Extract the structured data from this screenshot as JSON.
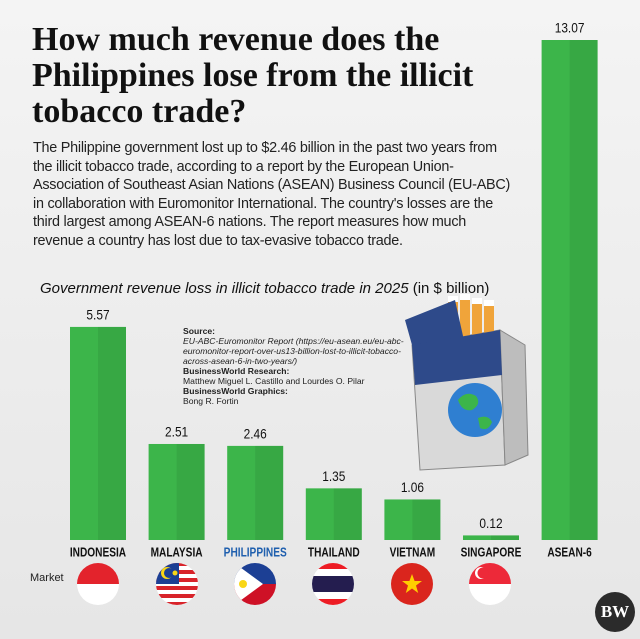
{
  "title": "How much revenue does the Philippines lose from the illicit tobacco trade?",
  "description": "The Philippine government lost up to $2.46 billion in the past two years from the illicit tobacco trade, according to a report by the European Union-Association of Southeast Asian Nations (ASEAN) Business Council (EU-ABC) in collaboration with Euromonitor International. The country's losses are the third largest among ASEAN-6 nations. The report measures how much revenue a country has lost due to tax-evasive tobacco trade.",
  "source": {
    "label": "Source:",
    "text": "EU-ABC-Euromonitor Report (https://eu-asean.eu/eu-abc-euromonitor-report-over-us13-billion-lost-to-illicit-tobacco-across-asean-6-in-two-years/)",
    "research_label": "BusinessWorld Research:",
    "research": "Matthew Miguel L. Castillo and Lourdes O. Pilar",
    "graphics_label": "BusinessWorld Graphics:",
    "graphics": "Bong R. Fortin"
  },
  "logo": "BW",
  "chart_data": {
    "type": "bar",
    "title": "Government revenue loss in illicit tobacco trade in 2025",
    "unit_note": "(in $ billion)",
    "x_label": "Market",
    "categories": [
      "INDONESIA",
      "MALAYSIA",
      "PHILIPPINES",
      "THAILAND",
      "VIETNAM",
      "SINGAPORE",
      "ASEAN-6"
    ],
    "values": [
      5.57,
      2.51,
      2.46,
      1.35,
      1.06,
      0.12,
      13.07
    ],
    "color": "#3cb54a",
    "label_color": "#111111",
    "highlight_index": 2,
    "highlight_color": "#1f5fae"
  }
}
